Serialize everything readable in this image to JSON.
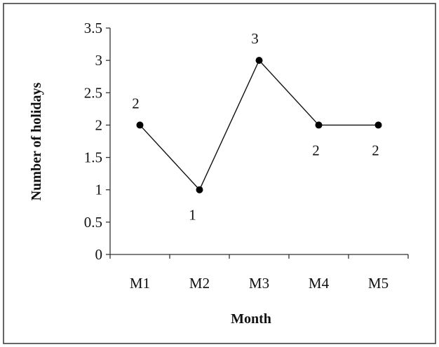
{
  "chart_data": {
    "type": "line",
    "categories": [
      "M1",
      "M2",
      "M3",
      "M4",
      "M5"
    ],
    "series": [
      {
        "values": [
          2,
          1,
          3,
          2,
          2
        ]
      }
    ],
    "data_labels": [
      "2",
      "1",
      "3",
      "2",
      "2"
    ],
    "y_ticks": [
      "0",
      "0.5",
      "1",
      "1.5",
      "2",
      "2.5",
      "3",
      "3.5"
    ],
    "ylim": [
      0,
      3.5
    ],
    "xlabel": "Month",
    "ylabel": "Number of holidays",
    "grid": false,
    "legend": "none",
    "colors": {
      "line": "#111111",
      "marker": "#000000",
      "frame": "#333333"
    }
  }
}
